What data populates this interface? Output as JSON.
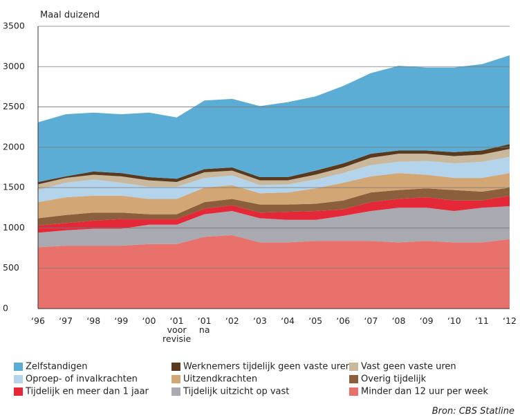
{
  "chart_data": {
    "type": "stacked_area",
    "y_label": "Maal duizend",
    "source": "Bron: CBS Statline",
    "categories": [
      "‘96",
      "‘97",
      "‘98",
      "‘99",
      "‘00",
      "‘01\nvoor\nrevisie",
      "‘01\nna",
      "‘02",
      "‘03",
      "‘04",
      "‘05",
      "‘06",
      "‘07",
      "‘08",
      "‘09",
      "‘10",
      "‘11",
      "‘12"
    ],
    "ylim": [
      0,
      3500
    ],
    "yticks": [
      0,
      500,
      1000,
      1500,
      2000,
      2500,
      3000,
      3500
    ],
    "grid": true,
    "series": [
      {
        "name": "Minder dan 12 uur per week",
        "color": "#e8716c",
        "values": [
          760,
          780,
          780,
          780,
          800,
          800,
          890,
          910,
          820,
          820,
          840,
          840,
          840,
          820,
          840,
          820,
          820,
          860
        ]
      },
      {
        "name": "Tijdelijk uitzicht op vast",
        "color": "#a9a9b1",
        "values": [
          180,
          190,
          210,
          210,
          240,
          240,
          280,
          300,
          300,
          280,
          260,
          310,
          370,
          430,
          410,
          390,
          430,
          410
        ]
      },
      {
        "name": "Tijdelijk en meer dan 1 jaar",
        "color": "#e52838",
        "values": [
          90,
          90,
          100,
          120,
          70,
          70,
          70,
          70,
          70,
          100,
          110,
          80,
          110,
          110,
          130,
          130,
          90,
          130
        ]
      },
      {
        "name": "Overig tijdelijk",
        "color": "#8b5e3c",
        "values": [
          90,
          100,
          100,
          80,
          60,
          60,
          80,
          80,
          100,
          90,
          90,
          110,
          120,
          110,
          110,
          130,
          110,
          100
        ]
      },
      {
        "name": "Uitzendkrachten",
        "color": "#d3a676",
        "values": [
          200,
          220,
          210,
          210,
          190,
          190,
          180,
          170,
          140,
          150,
          190,
          220,
          200,
          210,
          170,
          150,
          170,
          180
        ]
      },
      {
        "name": "Oproep- of invalkrachten",
        "color": "#b4d4ec",
        "values": [
          150,
          180,
          200,
          160,
          150,
          150,
          120,
          120,
          100,
          100,
          110,
          120,
          140,
          140,
          170,
          180,
          200,
          200
        ]
      },
      {
        "name": "Vast geen vaste uren",
        "color": "#cab89d",
        "values": [
          70,
          60,
          60,
          80,
          80,
          60,
          70,
          60,
          60,
          50,
          60,
          70,
          90,
          100,
          90,
          90,
          90,
          100
        ]
      },
      {
        "name": "Werknemers tijdelijk geen vaste uren",
        "color": "#5a3a1e",
        "values": [
          30,
          20,
          40,
          40,
          40,
          40,
          40,
          40,
          40,
          40,
          50,
          50,
          50,
          40,
          40,
          50,
          50,
          60
        ]
      },
      {
        "name": "Zelfstandigen",
        "color": "#5cadd6",
        "values": [
          740,
          770,
          730,
          730,
          800,
          760,
          850,
          850,
          880,
          930,
          920,
          960,
          1000,
          1050,
          1030,
          1050,
          1070,
          1100
        ]
      }
    ]
  }
}
